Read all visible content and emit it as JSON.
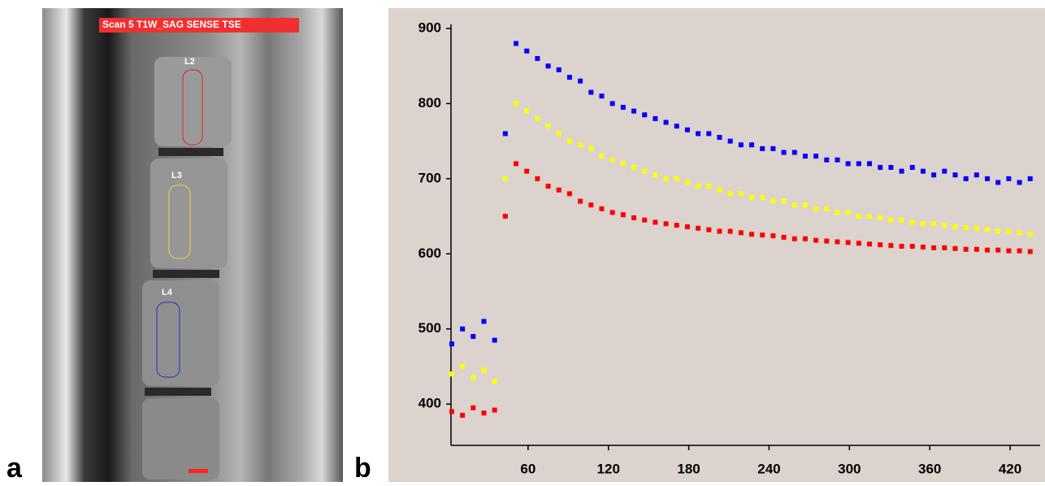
{
  "image": {
    "banner": "Scan 5 T1W_SAG SENSE TSE",
    "rois": [
      "L2",
      "L3",
      "L4"
    ]
  },
  "panel_labels": [
    "a",
    "b"
  ],
  "chart_data": {
    "type": "scatter",
    "x": [
      3,
      11,
      19,
      27,
      35,
      43,
      51,
      59,
      67,
      75,
      83,
      91,
      99,
      107,
      115,
      123,
      131,
      139,
      147,
      155,
      163,
      171,
      179,
      187,
      195,
      203,
      211,
      219,
      227,
      235,
      243,
      251,
      259,
      267,
      275,
      283,
      291,
      299,
      307,
      315,
      323,
      331,
      339,
      347,
      355,
      363,
      371,
      379,
      387,
      395,
      403,
      411,
      419,
      427,
      435
    ],
    "series": [
      {
        "color": "#0000ff",
        "values": [
          480,
          500,
          490,
          510,
          485,
          760,
          880,
          870,
          860,
          850,
          845,
          835,
          830,
          815,
          810,
          800,
          795,
          790,
          785,
          780,
          775,
          770,
          765,
          760,
          760,
          755,
          750,
          745,
          745,
          740,
          740,
          735,
          735,
          730,
          730,
          725,
          725,
          720,
          720,
          720,
          715,
          715,
          710,
          715,
          710,
          705,
          710,
          705,
          700,
          705,
          700,
          695,
          700,
          695,
          700
        ]
      },
      {
        "color": "#ffff00",
        "values": [
          440,
          450,
          435,
          445,
          430,
          700,
          800,
          790,
          780,
          770,
          760,
          750,
          745,
          740,
          730,
          725,
          720,
          715,
          710,
          705,
          700,
          700,
          695,
          690,
          690,
          685,
          680,
          680,
          675,
          675,
          670,
          670,
          665,
          665,
          660,
          660,
          655,
          655,
          650,
          650,
          648,
          645,
          645,
          642,
          640,
          640,
          638,
          636,
          635,
          634,
          632,
          630,
          630,
          628,
          626
        ]
      },
      {
        "color": "#ff0000",
        "values": [
          390,
          385,
          395,
          388,
          392,
          650,
          720,
          710,
          700,
          690,
          685,
          680,
          670,
          665,
          660,
          655,
          652,
          648,
          645,
          642,
          640,
          638,
          636,
          634,
          632,
          630,
          630,
          628,
          626,
          625,
          624,
          622,
          620,
          620,
          618,
          617,
          616,
          615,
          614,
          613,
          612,
          611,
          610,
          610,
          609,
          608,
          608,
          607,
          606,
          606,
          605,
          605,
          604,
          604,
          603
        ]
      }
    ],
    "xlim": [
      0,
      440
    ],
    "xticks": [
      60,
      120,
      180,
      240,
      300,
      360,
      420
    ],
    "ylim": [
      345,
      900
    ],
    "yticks": [
      400,
      500,
      600,
      700,
      800,
      900
    ]
  }
}
